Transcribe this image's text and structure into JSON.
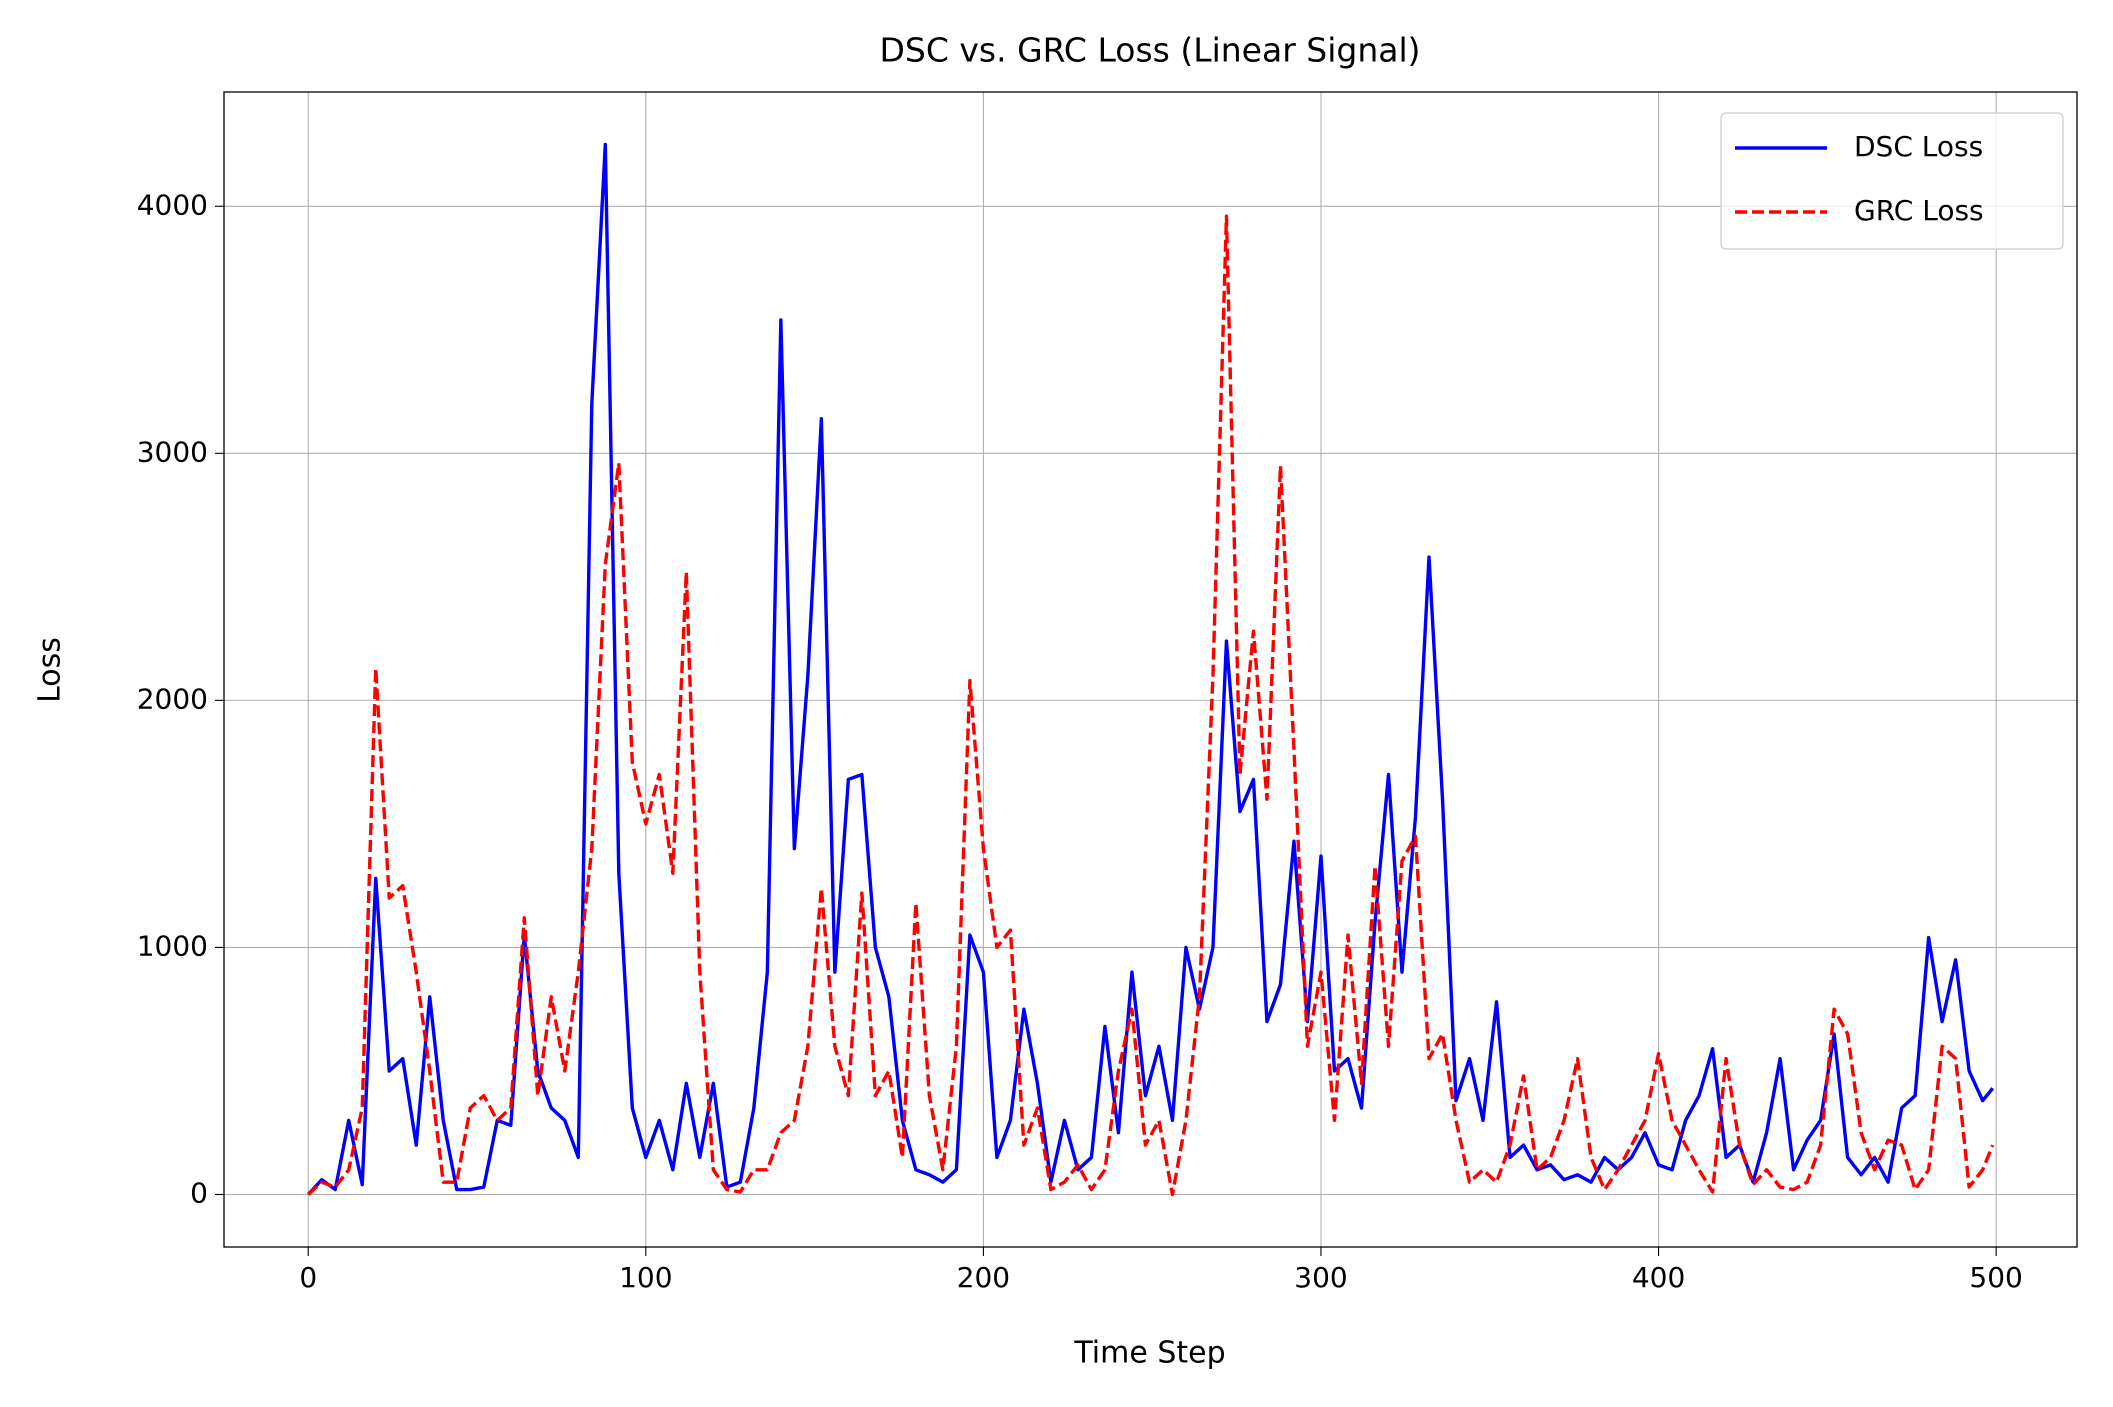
{
  "chart_data": {
    "type": "line",
    "title": "DSC vs. GRC Loss (Linear Signal)",
    "x_label": "Time Step",
    "y_label": "Loss",
    "x": [
      0,
      4,
      8,
      12,
      16,
      20,
      24,
      28,
      32,
      36,
      40,
      44,
      48,
      52,
      56,
      60,
      64,
      68,
      72,
      76,
      80,
      84,
      88,
      92,
      96,
      100,
      104,
      108,
      112,
      116,
      120,
      124,
      128,
      132,
      136,
      140,
      144,
      148,
      152,
      156,
      160,
      164,
      168,
      172,
      176,
      180,
      184,
      188,
      192,
      196,
      200,
      204,
      208,
      212,
      216,
      220,
      224,
      228,
      232,
      236,
      240,
      244,
      248,
      252,
      256,
      260,
      264,
      268,
      272,
      276,
      280,
      284,
      288,
      292,
      296,
      300,
      304,
      308,
      312,
      316,
      320,
      324,
      328,
      332,
      336,
      340,
      344,
      348,
      352,
      356,
      360,
      364,
      368,
      372,
      376,
      380,
      384,
      388,
      392,
      396,
      400,
      404,
      408,
      412,
      416,
      420,
      424,
      428,
      432,
      436,
      440,
      444,
      448,
      452,
      456,
      460,
      464,
      468,
      472,
      476,
      480,
      484,
      488,
      492,
      496,
      499
    ],
    "series": [
      {
        "name": "DSC Loss",
        "color": "#0000ff",
        "linestyle": "solid",
        "values": [
          0,
          60,
          20,
          300,
          40,
          1280,
          500,
          550,
          200,
          800,
          300,
          20,
          20,
          30,
          300,
          280,
          1050,
          500,
          350,
          300,
          150,
          3200,
          4250,
          1300,
          350,
          150,
          300,
          100,
          450,
          150,
          450,
          30,
          50,
          350,
          900,
          3540,
          1400,
          2100,
          3140,
          900,
          1680,
          1700,
          1000,
          800,
          300,
          100,
          80,
          50,
          100,
          1050,
          900,
          150,
          300,
          750,
          450,
          50,
          300,
          100,
          150,
          680,
          250,
          900,
          400,
          600,
          300,
          1000,
          750,
          1000,
          2240,
          1550,
          1680,
          700,
          850,
          1430,
          700,
          1370,
          500,
          550,
          350,
          1100,
          1700,
          900,
          1530,
          2580,
          1600,
          380,
          550,
          300,
          780,
          150,
          200,
          100,
          120,
          60,
          80,
          50,
          150,
          100,
          150,
          250,
          120,
          100,
          300,
          400,
          590,
          150,
          200,
          50,
          250,
          550,
          100,
          220,
          300,
          650,
          150,
          80,
          150,
          50,
          350,
          400,
          1040,
          700,
          950,
          500,
          380,
          430
        ]
      },
      {
        "name": "GRC Loss",
        "color": "#ff0000",
        "linestyle": "dashed",
        "values": [
          0,
          50,
          30,
          100,
          350,
          2130,
          1200,
          1250,
          900,
          500,
          50,
          50,
          350,
          400,
          300,
          350,
          1120,
          400,
          800,
          500,
          900,
          1400,
          2550,
          2960,
          1750,
          1500,
          1700,
          1300,
          2520,
          900,
          100,
          20,
          10,
          100,
          100,
          250,
          300,
          600,
          1240,
          600,
          400,
          1220,
          400,
          500,
          150,
          1180,
          400,
          100,
          600,
          2080,
          1400,
          1000,
          1070,
          200,
          350,
          20,
          50,
          120,
          20,
          100,
          500,
          750,
          200,
          300,
          0,
          300,
          800,
          2100,
          3960,
          1700,
          2280,
          1600,
          2950,
          1800,
          600,
          900,
          300,
          1050,
          450,
          1330,
          600,
          1350,
          1450,
          550,
          650,
          300,
          50,
          100,
          50,
          200,
          480,
          100,
          150,
          300,
          550,
          150,
          20,
          100,
          200,
          300,
          570,
          300,
          200,
          100,
          10,
          550,
          200,
          40,
          100,
          30,
          20,
          50,
          200,
          750,
          650,
          250,
          100,
          220,
          200,
          20,
          100,
          600,
          550,
          30,
          100,
          200
        ]
      }
    ],
    "xlim": [
      -24.95,
      523.95
    ],
    "ylim": [
      -212.5,
      4462.5
    ],
    "xticks": [
      0,
      100,
      200,
      300,
      400,
      500
    ],
    "yticks": [
      0,
      1000,
      2000,
      3000,
      4000
    ],
    "grid": true,
    "legend": "upper right"
  }
}
